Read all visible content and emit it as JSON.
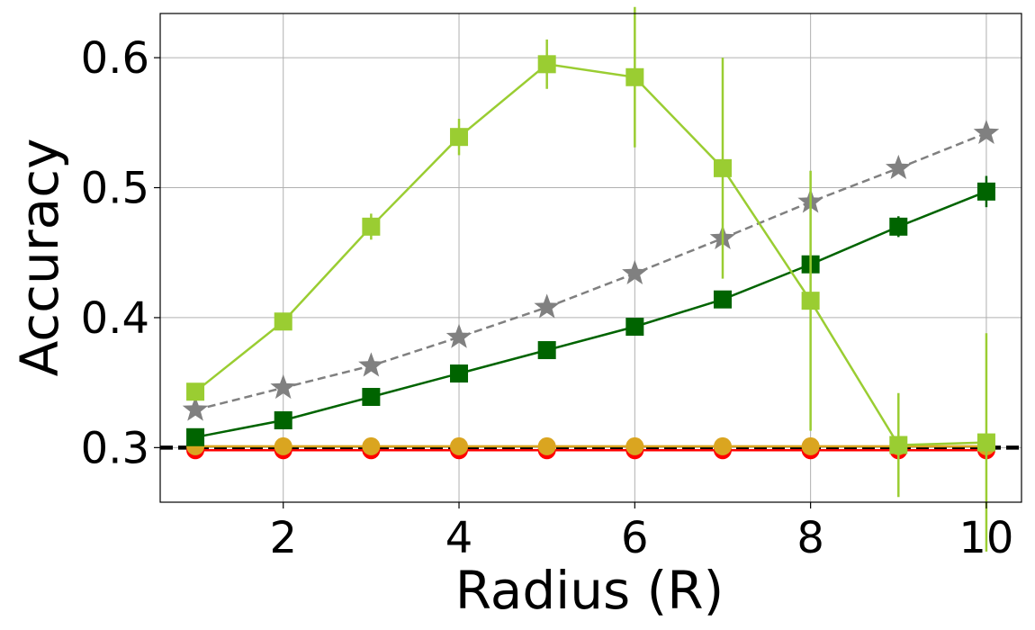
{
  "chart_data": {
    "type": "line",
    "title": "",
    "xlabel": "Radius (R)",
    "ylabel": "Accuracy",
    "xlim": [
      0.6,
      10.4
    ],
    "ylim": [
      0.258,
      0.634
    ],
    "x_ticks": [
      2,
      4,
      6,
      8,
      10
    ],
    "x_tick_labels": [
      "2",
      "4",
      "6",
      "8",
      "10"
    ],
    "y_ticks": [
      0.3,
      0.4,
      0.5,
      0.6
    ],
    "y_tick_labels": [
      "0.3",
      "0.4",
      "0.5",
      "0.6"
    ],
    "grid": true,
    "x": [
      1,
      2,
      3,
      4,
      5,
      6,
      7,
      8,
      9,
      10
    ],
    "reference_line": {
      "y": 0.3,
      "color": "#000000",
      "style": "dashed"
    },
    "series": [
      {
        "color": "#9acd32",
        "marker": "square",
        "line": "solid",
        "values": [
          0.343,
          0.397,
          0.47,
          0.539,
          0.595,
          0.585,
          0.515,
          0.413,
          0.302,
          0.304
        ],
        "errors": [
          0.004,
          0.004,
          0.01,
          0.014,
          0.019,
          0.054,
          0.085,
          0.1,
          0.04,
          0.084
        ]
      },
      {
        "color": "#808080",
        "marker": "star",
        "line": "dashed",
        "values": [
          0.329,
          0.346,
          0.363,
          0.385,
          0.408,
          0.434,
          0.461,
          0.489,
          0.515,
          0.542
        ],
        "errors": []
      },
      {
        "color": "#006400",
        "marker": "square",
        "line": "solid",
        "values": [
          0.308,
          0.321,
          0.339,
          0.357,
          0.375,
          0.393,
          0.414,
          0.441,
          0.47,
          0.497
        ],
        "errors": [
          0,
          0,
          0,
          0,
          0,
          0,
          0,
          0,
          0.008,
          0.012
        ]
      },
      {
        "color": "#daa520",
        "marker": "circle",
        "line": "solid",
        "values": [
          0.301,
          0.301,
          0.301,
          0.301,
          0.301,
          0.301,
          0.301,
          0.301,
          0.301,
          0.301
        ],
        "errors": []
      },
      {
        "color": "#ff0000",
        "marker": "circle",
        "line": "solid",
        "values": [
          0.298,
          0.298,
          0.298,
          0.298,
          0.298,
          0.298,
          0.298,
          0.298,
          0.298,
          0.298
        ],
        "errors": []
      }
    ]
  }
}
